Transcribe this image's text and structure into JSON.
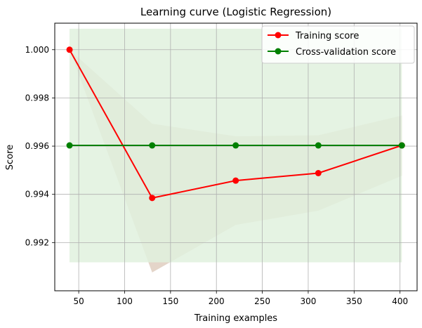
{
  "chart_data": {
    "type": "line",
    "title": "Learning curve (Logistic Regression)",
    "xlabel": "Training examples",
    "ylabel": "Score",
    "xlim": [
      23.9,
      418.6
    ],
    "ylim": [
      0.99,
      1.0011
    ],
    "xticks": [
      50,
      100,
      150,
      200,
      250,
      300,
      350,
      400
    ],
    "yticks": [
      0.992,
      0.994,
      0.996,
      0.998,
      1.0
    ],
    "xtick_labels": [
      "50",
      "100",
      "150",
      "200",
      "250",
      "300",
      "350",
      "400"
    ],
    "ytick_labels": [
      "0.992",
      "0.994",
      "0.996",
      "0.998",
      "1.000"
    ],
    "grid": true,
    "legend_position": "top-right",
    "x": [
      40,
      130,
      221,
      311,
      402
    ],
    "series": [
      {
        "name": "Training score",
        "color": "#ff0000",
        "marker": "circle",
        "values": [
          1.0,
          0.99385,
          0.99457,
          0.99488,
          0.99603
        ],
        "band_upper": [
          1.0,
          0.99693,
          0.99641,
          0.99645,
          0.99727
        ],
        "band_lower": [
          1.0,
          0.99076,
          0.99273,
          0.99332,
          0.99477
        ],
        "band_color": "#e3d3c6"
      },
      {
        "name": "Cross-validation score",
        "color": "#008000",
        "marker": "circle",
        "values": [
          0.99603,
          0.99603,
          0.99603,
          0.99603,
          0.99603
        ],
        "band_upper": [
          1.00087,
          1.00087,
          1.00087,
          1.00087,
          1.00087
        ],
        "band_lower": [
          0.99118,
          0.99118,
          0.99118,
          0.99118,
          0.99118
        ],
        "band_color": "#e1f1de"
      }
    ]
  }
}
